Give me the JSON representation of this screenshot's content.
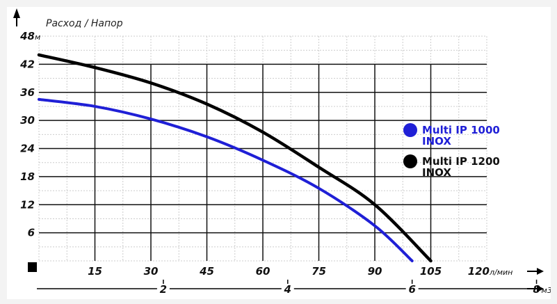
{
  "chart_data": {
    "type": "line",
    "title": "Расход / Напор",
    "ylabel_unit": "м",
    "xlabel_unit": "л/мин",
    "x2label_unit": "м3/ч",
    "xlim": [
      0,
      120
    ],
    "ylim": [
      0,
      48
    ],
    "x_ticks": [
      15,
      30,
      45,
      60,
      75,
      90,
      105,
      120
    ],
    "y_ticks": [
      6,
      12,
      18,
      24,
      30,
      36,
      42,
      48
    ],
    "x2_ticks": [
      2,
      4,
      6,
      8
    ],
    "grid": true,
    "legend_position": "right",
    "series": [
      {
        "name": "Multi IP 1000 INOX",
        "name_lines": [
          "Multi IP 1000",
          "INOX"
        ],
        "color": "#1f1fd6",
        "x": [
          0,
          15,
          30,
          45,
          60,
          75,
          90,
          100
        ],
        "y": [
          34.5,
          33,
          30.3,
          26.5,
          21.5,
          15.5,
          7.5,
          0
        ]
      },
      {
        "name": "Multi IP 1200 INOX",
        "name_lines": [
          "Multi IP 1200",
          "INOX"
        ],
        "color": "#000000",
        "x": [
          0,
          15,
          30,
          45,
          60,
          75,
          90,
          105
        ],
        "y": [
          44,
          41.3,
          38,
          33.5,
          27.5,
          20,
          12,
          0
        ]
      }
    ]
  }
}
